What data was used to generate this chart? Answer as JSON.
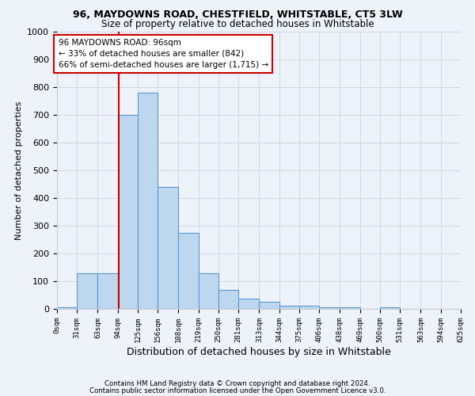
{
  "title1": "96, MAYDOWNS ROAD, CHESTFIELD, WHITSTABLE, CT5 3LW",
  "title2": "Size of property relative to detached houses in Whitstable",
  "xlabel": "Distribution of detached houses by size in Whitstable",
  "ylabel": "Number of detached properties",
  "bin_edges": [
    0,
    31,
    63,
    94,
    125,
    156,
    188,
    219,
    250,
    281,
    313,
    344,
    375,
    406,
    438,
    469,
    500,
    531,
    563,
    594,
    625
  ],
  "bar_heights": [
    5,
    128,
    128,
    700,
    780,
    440,
    275,
    130,
    70,
    38,
    25,
    12,
    12,
    7,
    5,
    0,
    7,
    0,
    0,
    0
  ],
  "bar_color": "#bdd7ee",
  "bar_edge_color": "#5b9bd5",
  "red_line_x": 96,
  "annotation_line1": "96 MAYDOWNS ROAD: 96sqm",
  "annotation_line2": "← 33% of detached houses are smaller (842)",
  "annotation_line3": "66% of semi-detached houses are larger (1,715) →",
  "annotation_box_color": "#ffffff",
  "annotation_box_edge_color": "#cc0000",
  "red_line_color": "#cc0000",
  "ylim": [
    0,
    1000
  ],
  "yticks": [
    0,
    100,
    200,
    300,
    400,
    500,
    600,
    700,
    800,
    900,
    1000
  ],
  "grid_color": "#d0d8e8",
  "background_color": "#eef2f9",
  "footer1": "Contains HM Land Registry data © Crown copyright and database right 2024.",
  "footer2": "Contains public sector information licensed under the Open Government Licence v3.0."
}
